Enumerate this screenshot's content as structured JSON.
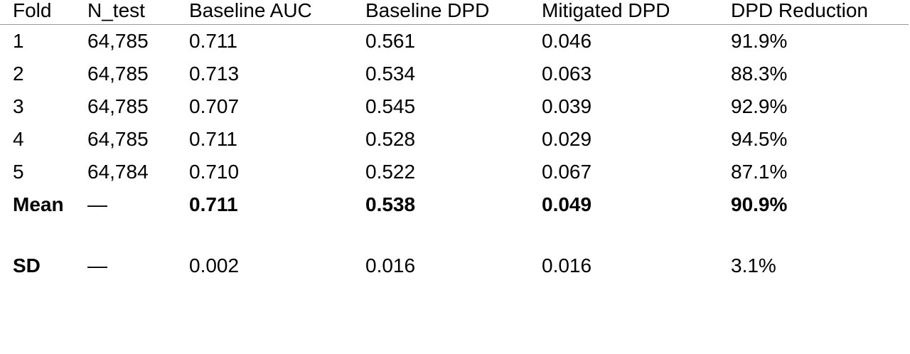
{
  "table": {
    "headers": [
      "Fold",
      "N_test",
      "Baseline AUC",
      "Baseline DPD",
      "Mitigated DPD",
      "DPD Reduction"
    ],
    "rows": [
      [
        "1",
        "64,785",
        "0.711",
        "0.561",
        "0.046",
        "91.9%"
      ],
      [
        "2",
        "64,785",
        "0.713",
        "0.534",
        "0.063",
        "88.3%"
      ],
      [
        "3",
        "64,785",
        "0.707",
        "0.545",
        "0.039",
        "92.9%"
      ],
      [
        "4",
        "64,785",
        "0.711",
        "0.528",
        "0.029",
        "94.5%"
      ],
      [
        "5",
        "64,784",
        "0.710",
        "0.522",
        "0.067",
        "87.1%"
      ],
      [
        "Mean",
        "—",
        "0.711",
        "0.538",
        "0.049",
        "90.9%"
      ],
      [
        "SD",
        "—",
        "0.002",
        "0.016",
        "0.016",
        "3.1%"
      ]
    ]
  }
}
